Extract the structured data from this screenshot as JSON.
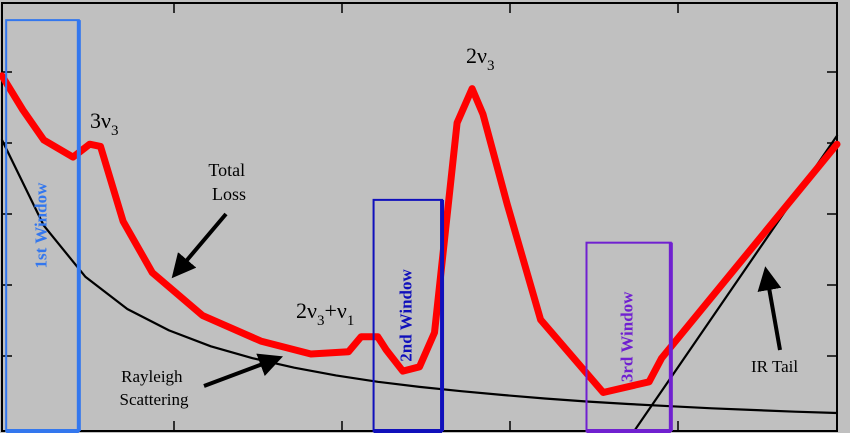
{
  "chart_data": {
    "type": "line",
    "title": "",
    "xlabel": "",
    "ylabel": "",
    "background_color": "#c0c0c0",
    "grid": false,
    "x_unit_note": "",
    "xlim": [
      0,
      100
    ],
    "ylim": [
      0,
      100
    ],
    "series": [
      {
        "name": "Total Loss",
        "color": "#ff0000",
        "x": [
          0,
          2.5,
          5,
          8.5,
          10.5,
          11.8,
          14.5,
          18,
          24,
          31,
          37,
          41.5,
          43,
          45,
          46,
          48,
          50,
          51.8,
          54.5,
          56.3,
          57.6,
          60.5,
          64.5,
          72,
          77.5,
          79,
          100
        ],
        "y": [
          83,
          75,
          68,
          64,
          67,
          66.5,
          49,
          37,
          27,
          21,
          18,
          18.5,
          22,
          22,
          19,
          14,
          15,
          23,
          72,
          80,
          74,
          53,
          26,
          9,
          11.5,
          17,
          67
        ]
      },
      {
        "name": "Rayleigh Scattering",
        "color": "#000000",
        "x": [
          0,
          5,
          10,
          15,
          20,
          25,
          30,
          35,
          40,
          45,
          50,
          55,
          60,
          65,
          70,
          75,
          80,
          85,
          90,
          95,
          100
        ],
        "y": [
          68,
          48,
          36,
          28.5,
          23.5,
          19.8,
          17,
          14.8,
          13,
          11.5,
          10.3,
          9.3,
          8.4,
          7.6,
          6.9,
          6.3,
          5.8,
          5.3,
          4.9,
          4.5,
          4.2
        ]
      },
      {
        "name": "IR Tail",
        "color": "#000000",
        "x": [
          75,
          100
        ],
        "y": [
          -2,
          69
        ]
      }
    ],
    "windows": [
      {
        "label": "1st Window",
        "color": "#3377ee",
        "x": [
          0.5,
          9.2
        ],
        "y": [
          0,
          96
        ]
      },
      {
        "label": "2nd Window",
        "color": "#1010bb",
        "x": [
          44.5,
          52.7
        ],
        "y": [
          0,
          54
        ]
      },
      {
        "label": "3rd Window",
        "color": "#7020d0",
        "x": [
          70,
          80.1
        ],
        "y": [
          0,
          44
        ]
      }
    ],
    "annotations": {
      "three_v3": {
        "main": "3ν",
        "sub": "3"
      },
      "two_v3": {
        "main": "2ν",
        "sub": "3"
      },
      "two_v3_plus_v1": {
        "a": "2ν",
        "a_sub": "3",
        "b": "+ν",
        "b_sub": "1"
      },
      "total_loss": [
        "Total",
        "Loss"
      ],
      "rayleigh": [
        "Rayleigh",
        "Scattering"
      ],
      "ir_tail": "IR Tail"
    }
  }
}
